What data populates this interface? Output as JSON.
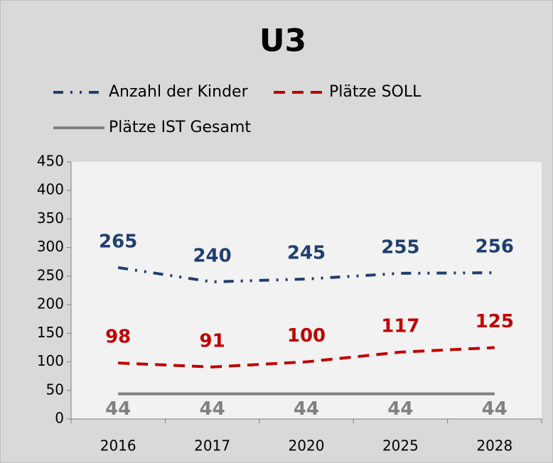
{
  "chart_data": {
    "type": "line",
    "title": "U3",
    "categories": [
      "2016",
      "2017",
      "2020",
      "2025",
      "2028"
    ],
    "series": [
      {
        "name": "Anzahl der Kinder",
        "color": "#1f3f6e",
        "values": [
          265,
          240,
          245,
          255,
          256
        ]
      },
      {
        "name": "Plätze SOLL",
        "color": "#c00000",
        "values": [
          98,
          91,
          100,
          117,
          125
        ]
      },
      {
        "name": "Plätze IST Gesamt",
        "color": "#808080",
        "values": [
          44,
          44,
          44,
          44,
          44
        ]
      }
    ],
    "ylim": [
      0,
      450
    ],
    "yticks": [
      0,
      50,
      100,
      150,
      200,
      250,
      300,
      350,
      400,
      450
    ],
    "grid": false
  }
}
